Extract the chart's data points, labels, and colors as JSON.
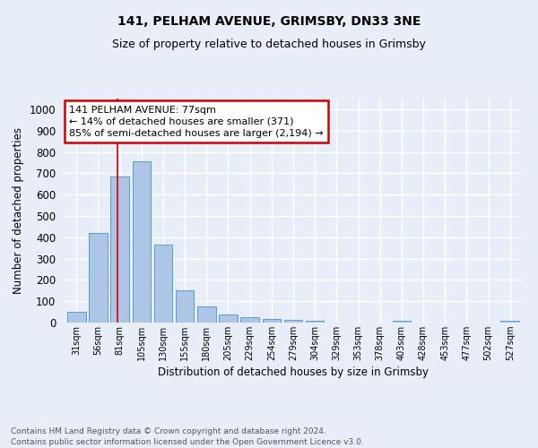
{
  "title1": "141, PELHAM AVENUE, GRIMSBY, DN33 3NE",
  "title2": "Size of property relative to detached houses in Grimsby",
  "xlabel": "Distribution of detached houses by size in Grimsby",
  "ylabel": "Number of detached properties",
  "categories": [
    "31sqm",
    "56sqm",
    "81sqm",
    "105sqm",
    "130sqm",
    "155sqm",
    "180sqm",
    "205sqm",
    "229sqm",
    "254sqm",
    "279sqm",
    "304sqm",
    "329sqm",
    "353sqm",
    "378sqm",
    "403sqm",
    "428sqm",
    "453sqm",
    "477sqm",
    "502sqm",
    "527sqm"
  ],
  "values": [
    50,
    420,
    685,
    755,
    365,
    153,
    76,
    37,
    27,
    18,
    14,
    8,
    0,
    0,
    0,
    9,
    0,
    0,
    0,
    0,
    9
  ],
  "bar_color": "#adc6e5",
  "bar_edge_color": "#5b9bd5",
  "vline_x": 1.88,
  "vline_color": "#cc0000",
  "annotation_text": "141 PELHAM AVENUE: 77sqm\n← 14% of detached houses are smaller (371)\n85% of semi-detached houses are larger (2,194) →",
  "annotation_box_color": "#ffffff",
  "annotation_box_edge": "#cc0000",
  "footnote": "Contains HM Land Registry data © Crown copyright and database right 2024.\nContains public sector information licensed under the Open Government Licence v3.0.",
  "ylim": [
    0,
    1050
  ],
  "yticks": [
    0,
    100,
    200,
    300,
    400,
    500,
    600,
    700,
    800,
    900,
    1000
  ],
  "bg_color": "#e8eef8",
  "grid_color": "#ffffff"
}
